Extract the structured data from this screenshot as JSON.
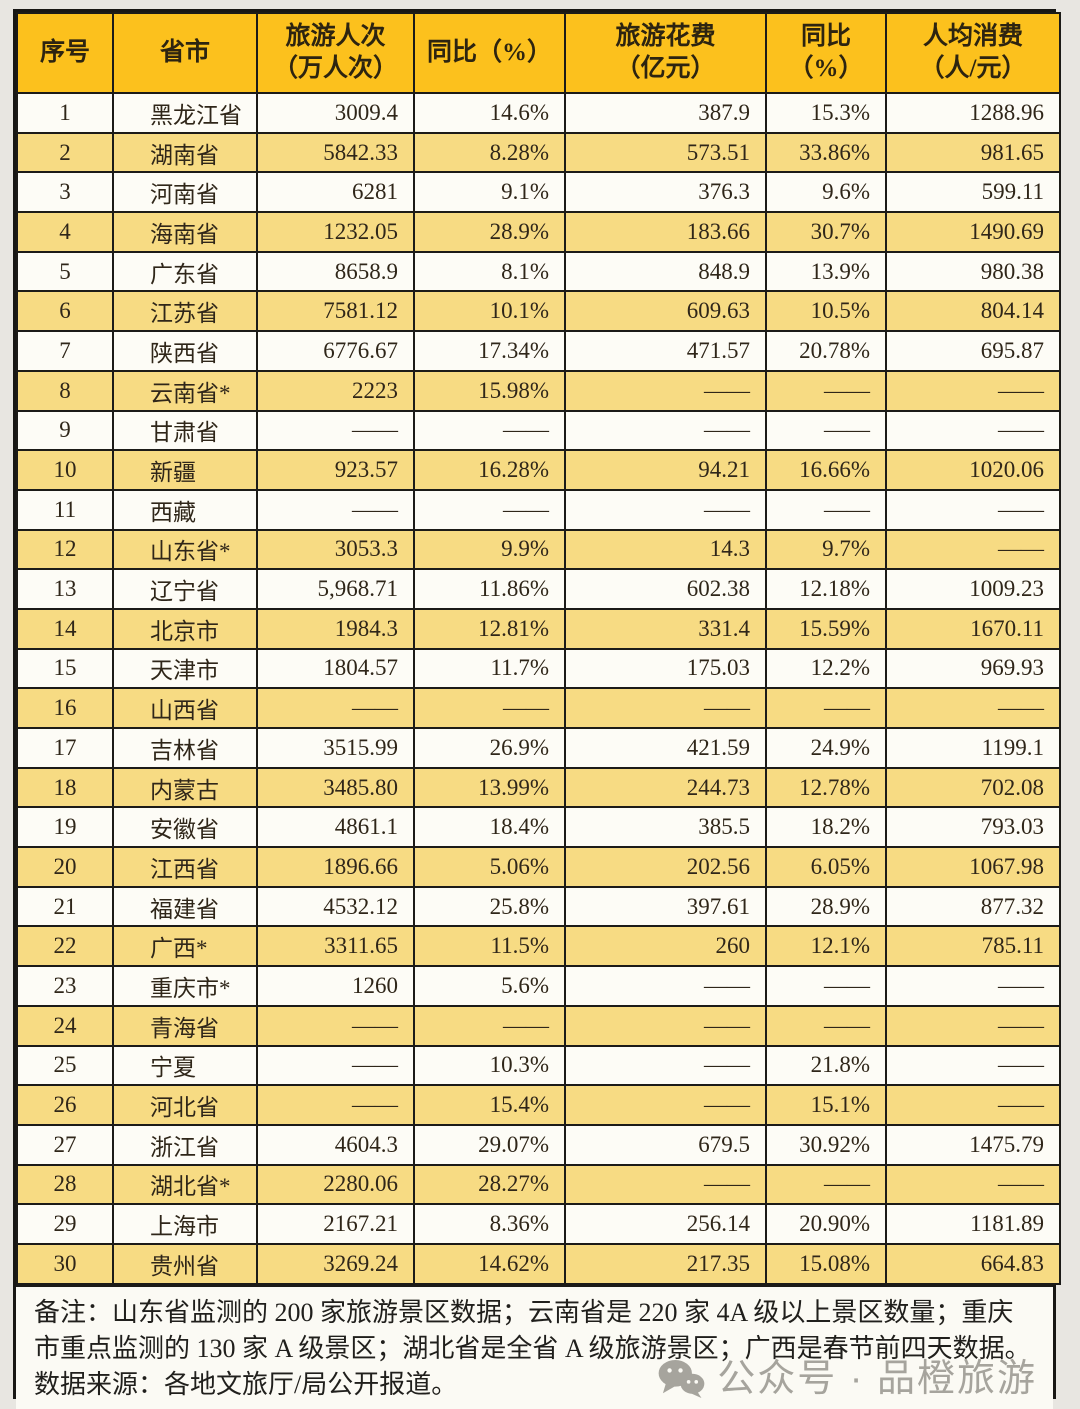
{
  "table": {
    "columns": [
      {
        "lines": [
          "序号"
        ]
      },
      {
        "lines": [
          "省市"
        ]
      },
      {
        "lines": [
          "旅游人次",
          "（万人次）"
        ]
      },
      {
        "lines": [
          "同比（%）"
        ]
      },
      {
        "lines": [
          "旅游花费",
          "（亿元）"
        ]
      },
      {
        "lines": [
          "同比",
          "（%）"
        ]
      },
      {
        "lines": [
          "人均消费",
          "（人/元）"
        ]
      }
    ],
    "field_names": [
      "index",
      "province",
      "visits",
      "visits-yoy",
      "spend",
      "spend-yoy",
      "per-capita"
    ],
    "rows": [
      [
        "1",
        "黑龙江省",
        "3009.4",
        "14.6%",
        "387.9",
        "15.3%",
        "1288.96"
      ],
      [
        "2",
        "湖南省",
        "5842.33",
        "8.28%",
        "573.51",
        "33.86%",
        "981.65"
      ],
      [
        "3",
        "河南省",
        "6281",
        "9.1%",
        "376.3",
        "9.6%",
        "599.11"
      ],
      [
        "4",
        "海南省",
        "1232.05",
        "28.9%",
        "183.66",
        "30.7%",
        "1490.69"
      ],
      [
        "5",
        "广东省",
        "8658.9",
        "8.1%",
        "848.9",
        "13.9%",
        "980.38"
      ],
      [
        "6",
        "江苏省",
        "7581.12",
        "10.1%",
        "609.63",
        "10.5%",
        "804.14"
      ],
      [
        "7",
        "陕西省",
        "6776.67",
        "17.34%",
        "471.57",
        "20.78%",
        "695.87"
      ],
      [
        "8",
        "云南省*",
        "2223",
        "15.98%",
        "——",
        "——",
        "——"
      ],
      [
        "9",
        "甘肃省",
        "——",
        "——",
        "——",
        "——",
        "——"
      ],
      [
        "10",
        "新疆",
        "923.57",
        "16.28%",
        "94.21",
        "16.66%",
        "1020.06"
      ],
      [
        "11",
        "西藏",
        "——",
        "——",
        "——",
        "——",
        "——"
      ],
      [
        "12",
        "山东省*",
        "3053.3",
        "9.9%",
        "14.3",
        "9.7%",
        "——"
      ],
      [
        "13",
        "辽宁省",
        "5,968.71",
        "11.86%",
        "602.38",
        "12.18%",
        "1009.23"
      ],
      [
        "14",
        "北京市",
        "1984.3",
        "12.81%",
        "331.4",
        "15.59%",
        "1670.11"
      ],
      [
        "15",
        "天津市",
        "1804.57",
        "11.7%",
        "175.03",
        "12.2%",
        "969.93"
      ],
      [
        "16",
        "山西省",
        "——",
        "——",
        "——",
        "——",
        "——"
      ],
      [
        "17",
        "吉林省",
        "3515.99",
        "26.9%",
        "421.59",
        "24.9%",
        "1199.1"
      ],
      [
        "18",
        "内蒙古",
        "3485.80",
        "13.99%",
        "244.73",
        "12.78%",
        "702.08"
      ],
      [
        "19",
        "安徽省",
        "4861.1",
        "18.4%",
        "385.5",
        "18.2%",
        "793.03"
      ],
      [
        "20",
        "江西省",
        "1896.66",
        "5.06%",
        "202.56",
        "6.05%",
        "1067.98"
      ],
      [
        "21",
        "福建省",
        "4532.12",
        "25.8%",
        "397.61",
        "28.9%",
        "877.32"
      ],
      [
        "22",
        "广西*",
        "3311.65",
        "11.5%",
        "260",
        "12.1%",
        "785.11"
      ],
      [
        "23",
        "重庆市*",
        "1260",
        "5.6%",
        "——",
        "——",
        "——"
      ],
      [
        "24",
        "青海省",
        "——",
        "——",
        "——",
        "——",
        "——"
      ],
      [
        "25",
        "宁夏",
        "——",
        "10.3%",
        "——",
        "21.8%",
        "——"
      ],
      [
        "26",
        "河北省",
        "——",
        "15.4%",
        "——",
        "15.1%",
        "——"
      ],
      [
        "27",
        "浙江省",
        "4604.3",
        "29.07%",
        "679.5",
        "30.92%",
        "1475.79"
      ],
      [
        "28",
        "湖北省*",
        "2280.06",
        "28.27%",
        "——",
        "——",
        "——"
      ],
      [
        "29",
        "上海市",
        "2167.21",
        "8.36%",
        "256.14",
        "20.90%",
        "1181.89"
      ],
      [
        "30",
        "贵州省",
        "3269.24",
        "14.62%",
        "217.35",
        "15.08%",
        "664.83"
      ]
    ]
  },
  "note": {
    "text": "备注：山东省监测的 200 家旅游景区数据；云南省是 220 家 4A 级以上景区数量；重庆市重点监测的 130 家 A 级景区；湖北省是全省 A 级旅游景区；广西是春节前四天数据。数据来源：各地文旅厅/局公开报道。"
  },
  "watermark": {
    "icon": "wechat-icon",
    "text": "公众号 · 品橙旅游"
  },
  "colors": {
    "header_bg": "#fcc11d",
    "row_alt_bg": "#f7db83",
    "row_bg": "#fdfcf6",
    "border": "#1c1b18",
    "text": "#2f2619",
    "watermark_gray": "#98968f"
  }
}
